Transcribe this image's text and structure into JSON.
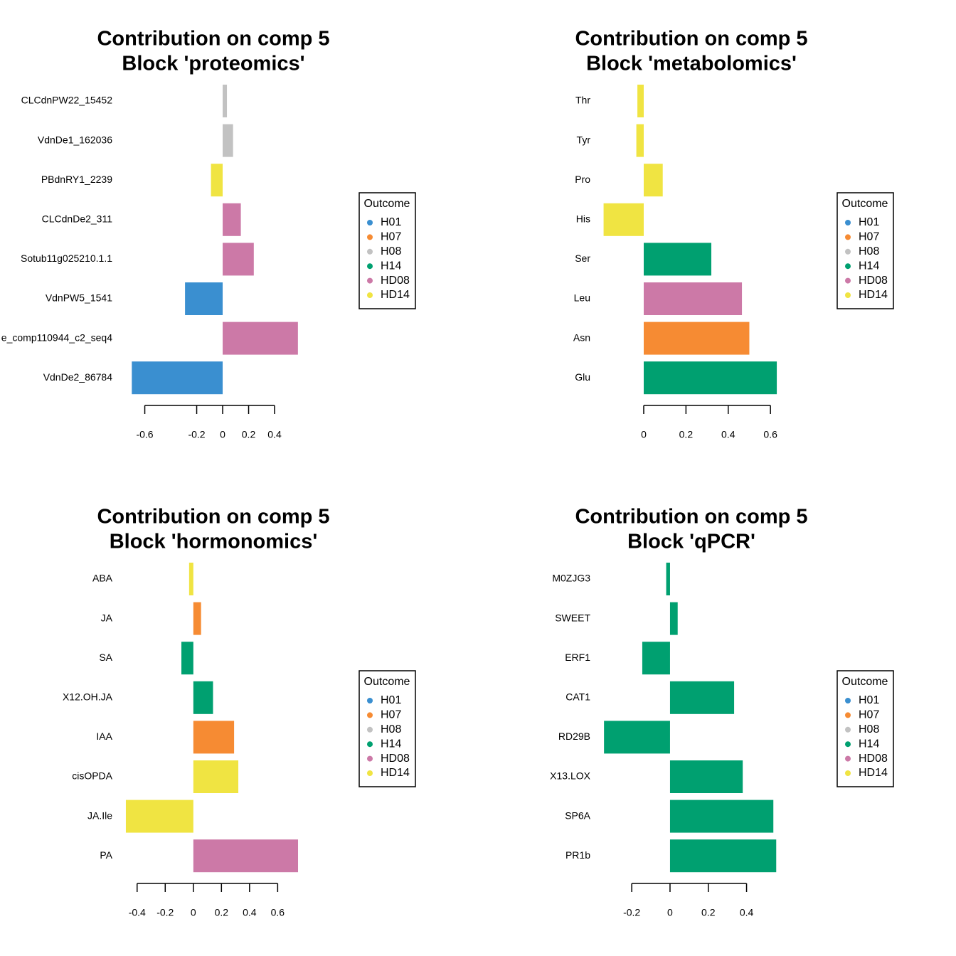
{
  "chart_data": [
    {
      "type": "bar",
      "orientation": "horizontal",
      "title": [
        "Contribution on comp 5",
        "Block 'proteomics'"
      ],
      "categories": [
        "CLCdnPW22_15452",
        "VdnDe1_162036",
        "PBdnRY1_2239",
        "CLCdnDe2_311",
        "Sotub11g025210.1.1",
        "VdnPW5_1541",
        "e_comp110944_c2_seq4",
        "VdnDe2_86784"
      ],
      "values": [
        0.033,
        0.08,
        -0.09,
        0.14,
        0.24,
        -0.29,
        0.58,
        -0.7
      ],
      "colors": [
        "#c2c2c2",
        "#c2c2c2",
        "#f0e442",
        "#cc79a7",
        "#cc79a7",
        "#3a8fd0",
        "#cc79a7",
        "#3a8fd0"
      ],
      "xlim": [
        -0.7,
        0.6
      ],
      "xticks": [
        -0.6,
        -0.2,
        0.0,
        0.2,
        0.4
      ],
      "legend": {
        "title": "Outcome",
        "items": [
          {
            "name": "H01",
            "color": "#3a8fd0"
          },
          {
            "name": "H07",
            "color": "#f68b33"
          },
          {
            "name": "H08",
            "color": "#c2c2c2"
          },
          {
            "name": "H14",
            "color": "#00a070"
          },
          {
            "name": "HD08",
            "color": "#cc79a7"
          },
          {
            "name": "HD14",
            "color": "#f0e442"
          }
        ]
      }
    },
    {
      "type": "bar",
      "orientation": "horizontal",
      "title": [
        "Contribution on comp 5",
        "Block 'metabolomics'"
      ],
      "categories": [
        "Thr",
        "Tyr",
        "Pro",
        "His",
        "Ser",
        "Leu",
        "Asn",
        "Glu"
      ],
      "values": [
        -0.03,
        -0.035,
        0.09,
        -0.19,
        0.32,
        0.465,
        0.5,
        0.63
      ],
      "colors": [
        "#f0e442",
        "#f0e442",
        "#f0e442",
        "#f0e442",
        "#00a070",
        "#cc79a7",
        "#f68b33",
        "#00a070"
      ],
      "xlim": [
        -0.2,
        0.65
      ],
      "xticks": [
        0.0,
        0.2,
        0.4,
        0.6
      ],
      "legend": {
        "title": "Outcome",
        "items": [
          {
            "name": "H01",
            "color": "#3a8fd0"
          },
          {
            "name": "H07",
            "color": "#f68b33"
          },
          {
            "name": "H08",
            "color": "#c2c2c2"
          },
          {
            "name": "H14",
            "color": "#00a070"
          },
          {
            "name": "HD08",
            "color": "#cc79a7"
          },
          {
            "name": "HD14",
            "color": "#f0e442"
          }
        ]
      }
    },
    {
      "type": "bar",
      "orientation": "horizontal",
      "title": [
        "Contribution on comp 5",
        "Block 'hormonomics'"
      ],
      "categories": [
        "ABA",
        "JA",
        "SA",
        "X12.OH.JA",
        "IAA",
        "cisOPDA",
        "JA.Ile",
        "PA"
      ],
      "values": [
        -0.03,
        0.055,
        -0.085,
        0.14,
        0.29,
        0.32,
        -0.48,
        0.745
      ],
      "colors": [
        "#f0e442",
        "#f68b33",
        "#00a070",
        "#00a070",
        "#f68b33",
        "#f0e442",
        "#f0e442",
        "#cc79a7"
      ],
      "xlim": [
        -0.5,
        0.75
      ],
      "xticks": [
        -0.4,
        -0.2,
        0.0,
        0.2,
        0.4,
        0.6
      ],
      "legend": {
        "title": "Outcome",
        "items": [
          {
            "name": "H01",
            "color": "#3a8fd0"
          },
          {
            "name": "H07",
            "color": "#f68b33"
          },
          {
            "name": "H08",
            "color": "#c2c2c2"
          },
          {
            "name": "H14",
            "color": "#00a070"
          },
          {
            "name": "HD08",
            "color": "#cc79a7"
          },
          {
            "name": "HD14",
            "color": "#f0e442"
          }
        ]
      }
    },
    {
      "type": "bar",
      "orientation": "horizontal",
      "title": [
        "Contribution on comp 5",
        "Block 'qPCR'"
      ],
      "categories": [
        "M0ZJG3",
        "SWEET",
        "ERF1",
        "CAT1",
        "RD29B",
        "X13.LOX",
        "SP6A",
        "PR1b"
      ],
      "values": [
        -0.02,
        0.04,
        -0.145,
        0.335,
        -0.345,
        0.38,
        0.54,
        0.555
      ],
      "colors": [
        "#00a070",
        "#00a070",
        "#00a070",
        "#00a070",
        "#00a070",
        "#00a070",
        "#00a070",
        "#00a070"
      ],
      "xlim": [
        -0.35,
        0.56
      ],
      "xticks": [
        -0.2,
        0.0,
        0.2,
        0.4
      ],
      "legend": {
        "title": "Outcome",
        "items": [
          {
            "name": "H01",
            "color": "#3a8fd0"
          },
          {
            "name": "H07",
            "color": "#f68b33"
          },
          {
            "name": "H08",
            "color": "#c2c2c2"
          },
          {
            "name": "H14",
            "color": "#00a070"
          },
          {
            "name": "HD08",
            "color": "#cc79a7"
          },
          {
            "name": "HD14",
            "color": "#f0e442"
          }
        ]
      }
    }
  ]
}
